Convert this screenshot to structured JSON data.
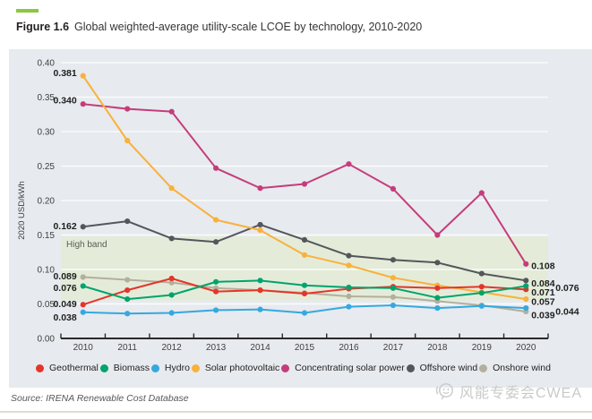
{
  "figure": {
    "label": "Figure 1.6",
    "title": "Global weighted-average utility-scale LCOE by technology, 2010-2020",
    "accent_color": "#8dc63f"
  },
  "source_note": "Source: IRENA Renewable Cost Database",
  "watermark": {
    "icon": "wechat-icon",
    "text": "风能专委会CWEA",
    "color": "#c7cbc7"
  },
  "chart_data": {
    "type": "line",
    "x": [
      2010,
      2011,
      2012,
      2013,
      2014,
      2015,
      2016,
      2017,
      2018,
      2019,
      2020
    ],
    "ylabel": "2020 USD/kWh",
    "ylim": [
      0,
      0.4
    ],
    "ytick_step": 0.05,
    "grid": true,
    "legend_position": "bottom",
    "plot_bg": "#e7eaee",
    "gridline_color": "rgba(255,255,255,0.8)",
    "axis_color": "#2b2a29",
    "tick_label_color": "#414042",
    "point_label_color": "#1f1f1f",
    "band": {
      "label": "High band",
      "from": 0.055,
      "to": 0.148,
      "color": "#e4ecd9",
      "label_color": "#5b5c55"
    },
    "series": [
      {
        "id": "geothermal",
        "name": "Geothermal",
        "color": "#e5352b",
        "values": [
          0.049,
          0.07,
          0.087,
          0.068,
          0.07,
          0.065,
          0.072,
          0.075,
          0.073,
          0.075,
          0.071
        ]
      },
      {
        "id": "biomass",
        "name": "Biomass",
        "color": "#00a36d",
        "values": [
          0.076,
          0.057,
          0.063,
          0.082,
          0.084,
          0.077,
          0.074,
          0.073,
          0.059,
          0.066,
          0.076
        ]
      },
      {
        "id": "hydro",
        "name": "Hydro",
        "color": "#35a8e0",
        "values": [
          0.038,
          0.036,
          0.037,
          0.041,
          0.042,
          0.037,
          0.046,
          0.048,
          0.044,
          0.047,
          0.044
        ]
      },
      {
        "id": "solar_pv",
        "name": "Solar photovoltaic",
        "color": "#f9b13b",
        "values": [
          0.381,
          0.287,
          0.218,
          0.172,
          0.157,
          0.121,
          0.106,
          0.088,
          0.077,
          0.067,
          0.057
        ]
      },
      {
        "id": "csp",
        "name": "Concentrating solar power",
        "color": "#c53c7c",
        "values": [
          0.34,
          0.333,
          0.329,
          0.247,
          0.218,
          0.224,
          0.253,
          0.217,
          0.15,
          0.211,
          0.108
        ]
      },
      {
        "id": "offshore_wind",
        "name": "Offshore wind",
        "color": "#54565b",
        "values": [
          0.162,
          0.17,
          0.145,
          0.14,
          0.165,
          0.143,
          0.12,
          0.114,
          0.11,
          0.094,
          0.084
        ]
      },
      {
        "id": "onshore_wind",
        "name": "Onshore wind",
        "color": "#b2af9c",
        "values": [
          0.089,
          0.085,
          0.081,
          0.073,
          0.07,
          0.066,
          0.061,
          0.06,
          0.054,
          0.048,
          0.039
        ]
      }
    ],
    "start_labels": [
      "0.381",
      "0.340",
      "0.162",
      "0.089",
      "0.076",
      "0.049",
      "0.038"
    ],
    "end_labels": [
      "0.108",
      "0.084",
      "0.076",
      "0.071",
      "0.057",
      "0.044",
      "0.039"
    ]
  }
}
